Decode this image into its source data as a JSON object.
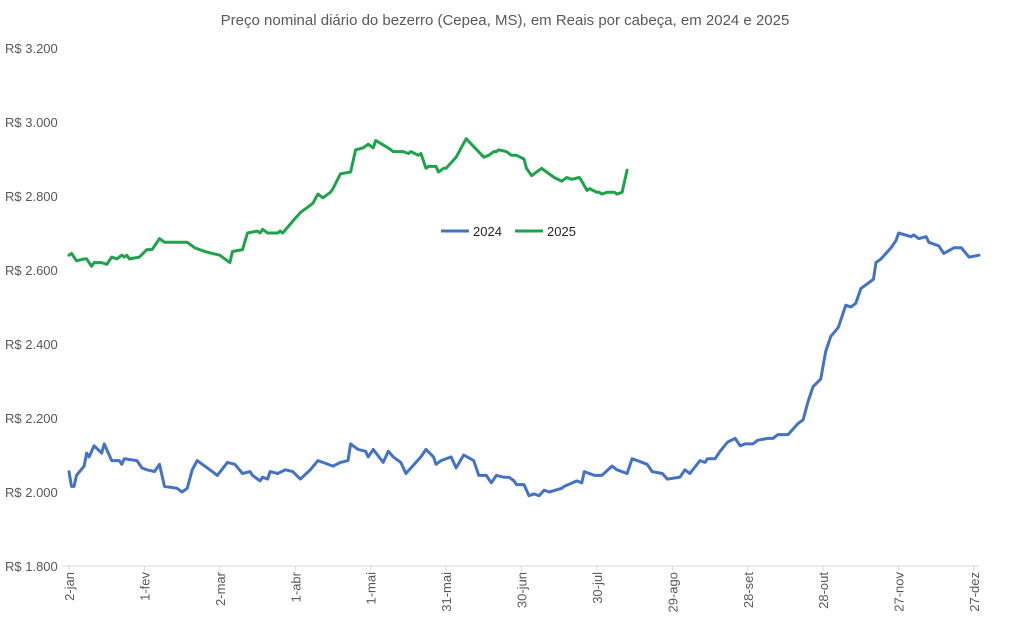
{
  "chart_data": {
    "type": "line",
    "title": "Preço nominal diário do bezerro (Cepea, MS), em Reais por cabeça, em 2024 e 2025",
    "xlabel": "",
    "ylabel": "",
    "ylim": [
      1800,
      3200
    ],
    "y_ticks": [
      {
        "value": 3200,
        "label": "R$ 3.200"
      },
      {
        "value": 3000,
        "label": "R$ 3.000"
      },
      {
        "value": 2800,
        "label": "R$ 2.800"
      },
      {
        "value": 2600,
        "label": "R$ 2.600"
      },
      {
        "value": 2400,
        "label": "R$ 2.400"
      },
      {
        "value": 2200,
        "label": "R$ 2.200"
      },
      {
        "value": 2000,
        "label": "R$ 2.000"
      },
      {
        "value": 1800,
        "label": "R$ 1.800"
      }
    ],
    "x_ticks": [
      {
        "date": "01-02",
        "label": "2-jan"
      },
      {
        "date": "02-01",
        "label": "1-fev"
      },
      {
        "date": "03-02",
        "label": "2-mar"
      },
      {
        "date": "04-01",
        "label": "1-abr"
      },
      {
        "date": "05-01",
        "label": "1-mai"
      },
      {
        "date": "05-31",
        "label": "31-mai"
      },
      {
        "date": "06-30",
        "label": "30-jun"
      },
      {
        "date": "07-30",
        "label": "30-jul"
      },
      {
        "date": "08-29",
        "label": "29-ago"
      },
      {
        "date": "09-28",
        "label": "28-set"
      },
      {
        "date": "10-28",
        "label": "28-out"
      },
      {
        "date": "11-27",
        "label": "27-nov"
      },
      {
        "date": "12-27",
        "label": "27-dez"
      }
    ],
    "grid": false,
    "legend_position": "center",
    "series": [
      {
        "name": "2024",
        "color": "#4472C4",
        "points": [
          [
            "01-02",
            2055
          ],
          [
            "01-03",
            2015
          ],
          [
            "01-04",
            2015
          ],
          [
            "01-05",
            2045
          ],
          [
            "01-08",
            2070
          ],
          [
            "01-09",
            2105
          ],
          [
            "01-10",
            2095
          ],
          [
            "01-12",
            2125
          ],
          [
            "01-15",
            2105
          ],
          [
            "01-16",
            2130
          ],
          [
            "01-19",
            2085
          ],
          [
            "01-22",
            2085
          ],
          [
            "01-23",
            2075
          ],
          [
            "01-24",
            2090
          ],
          [
            "01-29",
            2085
          ],
          [
            "01-31",
            2065
          ],
          [
            "02-02",
            2060
          ],
          [
            "02-05",
            2055
          ],
          [
            "02-07",
            2075
          ],
          [
            "02-09",
            2015
          ],
          [
            "02-14",
            2010
          ],
          [
            "02-16",
            2000
          ],
          [
            "02-18",
            2010
          ],
          [
            "02-20",
            2060
          ],
          [
            "02-22",
            2085
          ],
          [
            "02-28",
            2055
          ],
          [
            "03-01",
            2045
          ],
          [
            "03-05",
            2080
          ],
          [
            "03-08",
            2075
          ],
          [
            "03-11",
            2050
          ],
          [
            "03-14",
            2055
          ],
          [
            "03-15",
            2045
          ],
          [
            "03-18",
            2030
          ],
          [
            "03-19",
            2040
          ],
          [
            "03-21",
            2035
          ],
          [
            "03-22",
            2055
          ],
          [
            "03-25",
            2050
          ],
          [
            "03-28",
            2060
          ],
          [
            "03-31",
            2055
          ],
          [
            "04-03",
            2035
          ],
          [
            "04-07",
            2060
          ],
          [
            "04-10",
            2085
          ],
          [
            "04-12",
            2080
          ],
          [
            "04-16",
            2070
          ],
          [
            "04-19",
            2080
          ],
          [
            "04-22",
            2085
          ],
          [
            "04-23",
            2130
          ],
          [
            "04-26",
            2115
          ],
          [
            "04-29",
            2110
          ],
          [
            "04-30",
            2095
          ],
          [
            "05-02",
            2115
          ],
          [
            "05-06",
            2080
          ],
          [
            "05-08",
            2110
          ],
          [
            "05-10",
            2095
          ],
          [
            "05-13",
            2080
          ],
          [
            "05-15",
            2050
          ],
          [
            "05-21",
            2095
          ],
          [
            "05-23",
            2115
          ],
          [
            "05-26",
            2095
          ],
          [
            "05-27",
            2075
          ],
          [
            "05-29",
            2085
          ],
          [
            "06-02",
            2095
          ],
          [
            "06-04",
            2065
          ],
          [
            "06-07",
            2100
          ],
          [
            "06-11",
            2085
          ],
          [
            "06-13",
            2045
          ],
          [
            "06-16",
            2045
          ],
          [
            "06-18",
            2025
          ],
          [
            "06-20",
            2045
          ],
          [
            "06-23",
            2040
          ],
          [
            "06-25",
            2040
          ],
          [
            "06-27",
            2030
          ],
          [
            "06-28",
            2020
          ],
          [
            "07-01",
            2020
          ],
          [
            "07-03",
            1990
          ],
          [
            "07-05",
            1995
          ],
          [
            "07-07",
            1990
          ],
          [
            "07-09",
            2005
          ],
          [
            "07-11",
            2000
          ],
          [
            "07-16",
            2010
          ],
          [
            "07-17",
            2015
          ],
          [
            "07-22",
            2030
          ],
          [
            "07-24",
            2025
          ],
          [
            "07-25",
            2055
          ],
          [
            "07-29",
            2045
          ],
          [
            "08-01",
            2045
          ],
          [
            "08-05",
            2070
          ],
          [
            "08-07",
            2060
          ],
          [
            "08-11",
            2050
          ],
          [
            "08-13",
            2090
          ],
          [
            "08-19",
            2075
          ],
          [
            "08-21",
            2055
          ],
          [
            "08-25",
            2050
          ],
          [
            "08-27",
            2035
          ],
          [
            "09-01",
            2040
          ],
          [
            "09-03",
            2060
          ],
          [
            "09-05",
            2050
          ],
          [
            "09-09",
            2085
          ],
          [
            "09-11",
            2080
          ],
          [
            "09-12",
            2090
          ],
          [
            "09-15",
            2090
          ],
          [
            "09-17",
            2110
          ],
          [
            "09-20",
            2135
          ],
          [
            "09-23",
            2145
          ],
          [
            "09-25",
            2125
          ],
          [
            "09-27",
            2130
          ],
          [
            "09-30",
            2130
          ],
          [
            "10-02",
            2140
          ],
          [
            "10-06",
            2145
          ],
          [
            "10-08",
            2145
          ],
          [
            "10-10",
            2155
          ],
          [
            "10-14",
            2155
          ],
          [
            "10-16",
            2170
          ],
          [
            "10-18",
            2185
          ],
          [
            "10-20",
            2195
          ],
          [
            "10-22",
            2245
          ],
          [
            "10-24",
            2285
          ],
          [
            "10-27",
            2305
          ],
          [
            "10-29",
            2380
          ],
          [
            "10-31",
            2420
          ],
          [
            "11-03",
            2445
          ],
          [
            "11-06",
            2505
          ],
          [
            "11-08",
            2500
          ],
          [
            "11-10",
            2510
          ],
          [
            "11-12",
            2550
          ],
          [
            "11-17",
            2575
          ],
          [
            "11-18",
            2620
          ],
          [
            "11-20",
            2630
          ],
          [
            "11-24",
            2660
          ],
          [
            "11-26",
            2680
          ],
          [
            "11-27",
            2700
          ],
          [
            "12-02",
            2690
          ],
          [
            "12-03",
            2695
          ],
          [
            "12-05",
            2685
          ],
          [
            "12-08",
            2690
          ],
          [
            "12-09",
            2675
          ],
          [
            "12-13",
            2665
          ],
          [
            "12-15",
            2645
          ],
          [
            "12-19",
            2660
          ],
          [
            "12-22",
            2660
          ],
          [
            "12-25",
            2635
          ],
          [
            "12-29",
            2640
          ]
        ]
      },
      {
        "name": "2025",
        "color": "#1EA34A",
        "points": [
          [
            "01-02",
            2640
          ],
          [
            "01-03",
            2645
          ],
          [
            "01-05",
            2625
          ],
          [
            "01-08",
            2630
          ],
          [
            "01-09",
            2630
          ],
          [
            "01-11",
            2610
          ],
          [
            "01-12",
            2620
          ],
          [
            "01-15",
            2620
          ],
          [
            "01-17",
            2615
          ],
          [
            "01-19",
            2635
          ],
          [
            "01-21",
            2630
          ],
          [
            "01-23",
            2640
          ],
          [
            "01-24",
            2635
          ],
          [
            "01-25",
            2640
          ],
          [
            "01-26",
            2630
          ],
          [
            "01-30",
            2635
          ],
          [
            "02-02",
            2655
          ],
          [
            "02-04",
            2655
          ],
          [
            "02-07",
            2685
          ],
          [
            "02-09",
            2675
          ],
          [
            "02-14",
            2675
          ],
          [
            "02-16",
            2675
          ],
          [
            "02-18",
            2675
          ],
          [
            "02-20",
            2665
          ],
          [
            "02-21",
            2660
          ],
          [
            "02-25",
            2650
          ],
          [
            "02-28",
            2645
          ],
          [
            "03-02",
            2640
          ],
          [
            "03-06",
            2620
          ],
          [
            "03-07",
            2650
          ],
          [
            "03-11",
            2655
          ],
          [
            "03-13",
            2700
          ],
          [
            "03-17",
            2705
          ],
          [
            "03-18",
            2700
          ],
          [
            "03-19",
            2710
          ],
          [
            "03-21",
            2700
          ],
          [
            "03-25",
            2700
          ],
          [
            "03-26",
            2705
          ],
          [
            "03-27",
            2700
          ],
          [
            "04-01",
            2740
          ],
          [
            "04-03",
            2755
          ],
          [
            "04-05",
            2765
          ],
          [
            "04-08",
            2780
          ],
          [
            "04-10",
            2805
          ],
          [
            "04-12",
            2795
          ],
          [
            "04-15",
            2810
          ],
          [
            "04-16",
            2820
          ],
          [
            "04-19",
            2860
          ],
          [
            "04-23",
            2865
          ],
          [
            "04-25",
            2925
          ],
          [
            "04-28",
            2930
          ],
          [
            "04-30",
            2940
          ],
          [
            "05-02",
            2930
          ],
          [
            "05-03",
            2950
          ],
          [
            "05-08",
            2930
          ],
          [
            "05-09",
            2925
          ],
          [
            "05-10",
            2920
          ],
          [
            "05-14",
            2920
          ],
          [
            "05-16",
            2915
          ],
          [
            "05-17",
            2920
          ],
          [
            "05-20",
            2910
          ],
          [
            "05-21",
            2915
          ],
          [
            "05-23",
            2875
          ],
          [
            "05-24",
            2880
          ],
          [
            "05-27",
            2880
          ],
          [
            "05-28",
            2865
          ],
          [
            "05-30",
            2875
          ],
          [
            "05-31",
            2875
          ],
          [
            "06-04",
            2905
          ],
          [
            "06-08",
            2955
          ],
          [
            "06-15",
            2905
          ],
          [
            "06-17",
            2910
          ],
          [
            "06-19",
            2920
          ],
          [
            "06-20",
            2920
          ],
          [
            "06-21",
            2925
          ],
          [
            "06-24",
            2920
          ],
          [
            "06-26",
            2910
          ],
          [
            "06-28",
            2910
          ],
          [
            "07-01",
            2900
          ],
          [
            "07-02",
            2875
          ],
          [
            "07-04",
            2855
          ],
          [
            "07-08",
            2875
          ],
          [
            "07-10",
            2865
          ],
          [
            "07-13",
            2850
          ],
          [
            "07-16",
            2840
          ],
          [
            "07-18",
            2850
          ],
          [
            "07-20",
            2845
          ],
          [
            "07-23",
            2850
          ],
          [
            "07-24",
            2840
          ],
          [
            "07-26",
            2815
          ],
          [
            "07-27",
            2820
          ],
          [
            "07-30",
            2810
          ],
          [
            "07-31",
            2810
          ],
          [
            "08-01",
            2805
          ],
          [
            "08-03",
            2810
          ],
          [
            "08-06",
            2810
          ],
          [
            "08-07",
            2805
          ],
          [
            "08-09",
            2810
          ],
          [
            "08-11",
            2870
          ]
        ]
      }
    ]
  }
}
